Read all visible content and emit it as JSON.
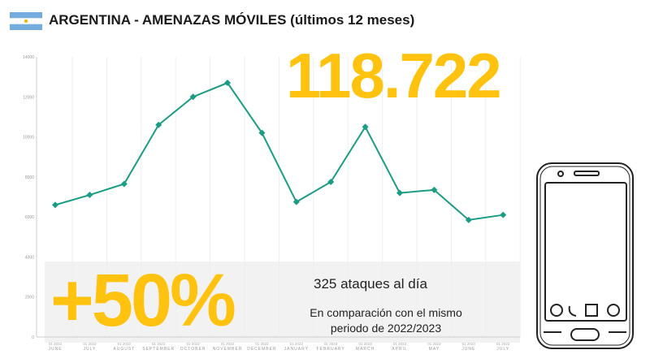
{
  "header": {
    "title": "ARGENTINA - AMENAZAS MÓVILES (últimos 12 meses)",
    "flag_icon": "argentina-flag-icon"
  },
  "stats": {
    "total": "118.722",
    "increase": "+50%",
    "per_day": "325 ataques al día",
    "comparison_line1": "En comparación con el mismo",
    "comparison_line2": "periodo de 2022/2023"
  },
  "colors": {
    "line": "#1a9c85",
    "accent": "#ffc20e"
  },
  "chart_data": {
    "type": "line",
    "title": "ARGENTINA - AMENAZAS MÓVILES (últimos 12 meses)",
    "xlabel": "",
    "ylabel": "",
    "ylim": [
      0,
      14000
    ],
    "yticks": [
      0,
      2000,
      4000,
      6000,
      8000,
      10000,
      12000,
      14000
    ],
    "categories": [
      "JUNE",
      "JULY",
      "AUGUST",
      "SEPTEMBER",
      "OCTOBER",
      "NOVEMBER",
      "DECEMBER",
      "JANUARY",
      "FEBRUARY",
      "MARCH",
      "APRIL",
      "MAY",
      "JUNE",
      "JULY"
    ],
    "years": [
      "2022",
      "2022",
      "2022",
      "2022",
      "2022",
      "2022",
      "2022",
      "2023",
      "2023",
      "2023",
      "2023",
      "2023",
      "2023",
      "2023"
    ],
    "series": [
      {
        "name": "Amenazas móviles",
        "values": [
          6600,
          7100,
          7650,
          10600,
          12000,
          12700,
          10200,
          6750,
          7750,
          10500,
          7200,
          7350,
          5850,
          6100
        ]
      }
    ],
    "grid": "vertical"
  }
}
